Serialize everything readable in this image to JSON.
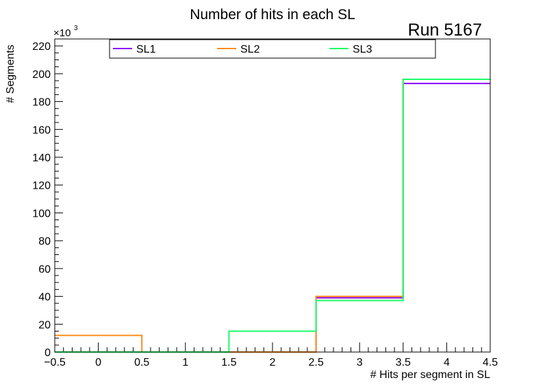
{
  "chart_data": {
    "type": "histogram",
    "title": "Number of hits in each SL",
    "run_label": "Run 5167",
    "xlabel": "# Hits per segment in SL",
    "ylabel": "# Segments",
    "y_multiplier_base": "×10",
    "y_multiplier_exp": "3",
    "xlim": [
      -0.5,
      4.5
    ],
    "ylim": [
      0,
      225
    ],
    "x_ticks": [
      -0.5,
      0,
      0.5,
      1,
      1.5,
      2,
      2.5,
      3,
      3.5,
      4,
      4.5
    ],
    "x_tick_labels": [
      "−0.5",
      "0",
      "0.5",
      "1",
      "1.5",
      "2",
      "2.5",
      "3",
      "3.5",
      "4",
      "4.5"
    ],
    "y_ticks": [
      0,
      20,
      40,
      60,
      80,
      100,
      120,
      140,
      160,
      180,
      200,
      220
    ],
    "y_tick_labels": [
      "0",
      "20",
      "40",
      "60",
      "80",
      "100",
      "120",
      "140",
      "160",
      "180",
      "200",
      "220"
    ],
    "bin_edges": [
      -0.5,
      0.5,
      1.5,
      2.5,
      3.5,
      4.5
    ],
    "legend_position": "top",
    "series": [
      {
        "name": "SL1",
        "color": "#8b00ff",
        "values": [
          0,
          0,
          0,
          39,
          193
        ]
      },
      {
        "name": "SL2",
        "color": "#ff8c1a",
        "values": [
          12,
          0,
          0,
          40,
          196
        ]
      },
      {
        "name": "SL3",
        "color": "#1aff66",
        "values": [
          0,
          0,
          15,
          37,
          196
        ]
      }
    ]
  }
}
